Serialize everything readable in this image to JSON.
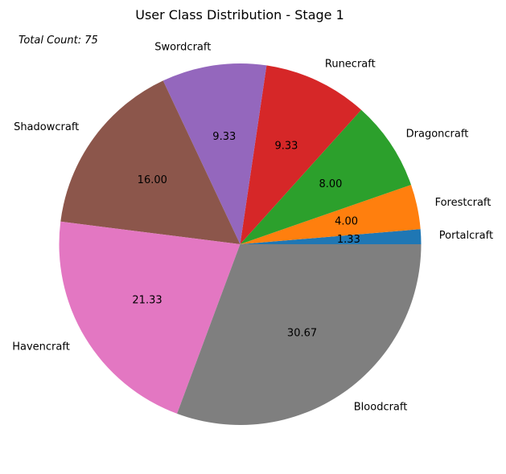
{
  "chart_data": {
    "type": "pie",
    "title": "User Class Distribution - Stage 1",
    "annotation": "Total Count: 75",
    "categories": [
      "Portalcraft",
      "Forestcraft",
      "Dragoncraft",
      "Runecraft",
      "Swordcraft",
      "Shadowcraft",
      "Havencraft",
      "Bloodcraft"
    ],
    "values": [
      1,
      3,
      6,
      7,
      7,
      12,
      16,
      23
    ],
    "percent_labels": [
      "1.33",
      "4.00",
      "8.00",
      "9.33",
      "9.33",
      "16.00",
      "21.33",
      "30.67"
    ],
    "colors": [
      "#1f77b4",
      "#ff7f0e",
      "#2ca02c",
      "#d62728",
      "#9467bd",
      "#8c564b",
      "#e377c2",
      "#7f7f7f"
    ],
    "start_angle_deg": 0,
    "direction": "counterclockwise",
    "legend": "none"
  }
}
